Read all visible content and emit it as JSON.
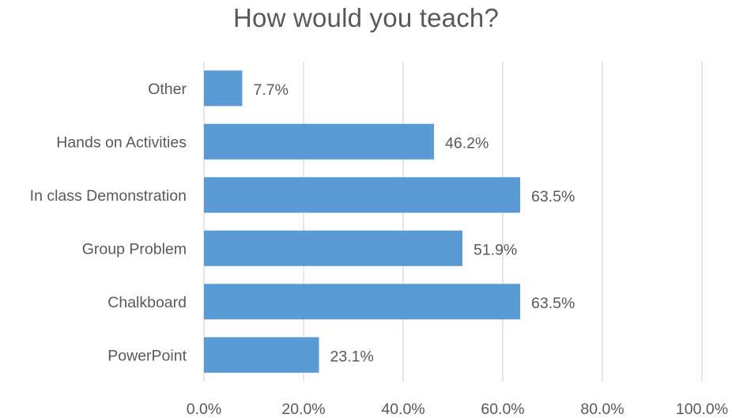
{
  "chart_data": {
    "type": "bar",
    "orientation": "horizontal",
    "title": "How would you teach?",
    "categories": [
      "Other",
      "Hands on Activities",
      "In class Demonstration",
      "Group Problem",
      "Chalkboard",
      "PowerPoint"
    ],
    "values": [
      7.7,
      46.2,
      63.5,
      51.9,
      63.5,
      23.1
    ],
    "data_labels": [
      "7.7%",
      "46.2%",
      "63.5%",
      "51.9%",
      "63.5%",
      "23.1%"
    ],
    "xlim": [
      0,
      100
    ],
    "x_ticks": [
      "0.0%",
      "20.0%",
      "40.0%",
      "60.0%",
      "80.0%",
      "100.0%"
    ],
    "x_tick_values": [
      0,
      20,
      40,
      60,
      80,
      100
    ],
    "grid": true,
    "legend": "none",
    "bar_color": "#5b9bd5",
    "grid_color": "#d9d9d9"
  }
}
